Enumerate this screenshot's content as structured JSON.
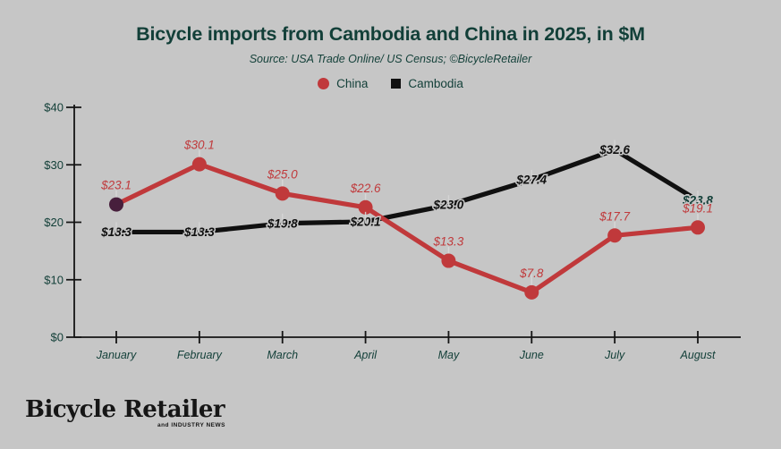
{
  "title": "Bicycle imports from Cambodia and China in 2025, in $M",
  "subtitle": "Source: USA Trade Online/ US Census; ©BicycleRetailer",
  "legend": [
    {
      "label": "China",
      "color": "#c0393b",
      "marker": "circle"
    },
    {
      "label": "Cambodia",
      "color": "#101010",
      "marker": "square"
    }
  ],
  "footer_logo": {
    "main": "Bicycle Retailer",
    "sub": "and INDUSTRY NEWS"
  },
  "colors": {
    "background": "#c6c6c6",
    "title_teal": "#123f38",
    "china_red": "#c0393b",
    "cambodia_black": "#101010",
    "first_point_plum": "#471f3c",
    "leader_gray": "#d6d6d6",
    "axis_black": "#141414"
  },
  "chart_data": {
    "type": "line",
    "title": "Bicycle imports from Cambodia and China in 2025, in $M",
    "xlabel": "",
    "ylabel": "",
    "categories": [
      "January",
      "February",
      "March",
      "April",
      "May",
      "June",
      "July",
      "August"
    ],
    "ytick_labels": [
      "$0",
      "$10",
      "$20",
      "$30",
      "$40"
    ],
    "ylim": [
      0,
      40
    ],
    "grid": false,
    "legend_position": "top",
    "series": [
      {
        "name": "Cambodia",
        "color": "#101010",
        "marker": "none",
        "values": [
          18.3,
          18.3,
          19.8,
          20.1,
          23.0,
          27.4,
          32.6,
          23.8
        ],
        "labels": [
          "$18.3",
          "$18.3",
          "$19.8",
          "$20.1",
          "$23.0",
          "$27.4",
          "$32.6",
          "$23.8"
        ],
        "label_position": "on_line",
        "label_color": "#101010",
        "last_label_color": "#123f38"
      },
      {
        "name": "China",
        "color": "#c0393b",
        "marker": "circle",
        "first_marker_color": "#471f3c",
        "values": [
          23.1,
          30.1,
          25.0,
          22.6,
          13.3,
          7.8,
          17.7,
          19.1
        ],
        "labels": [
          "$23.1",
          "$30.1",
          "$25.0",
          "$22.6",
          "$13.3",
          "$7.8",
          "$17.7",
          "$19.1"
        ],
        "label_position": "above",
        "label_color": "#c0393b"
      }
    ]
  }
}
